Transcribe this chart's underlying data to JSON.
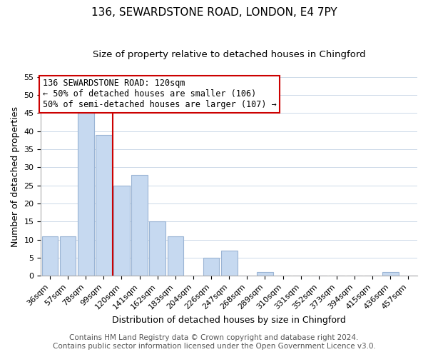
{
  "title": "136, SEWARDSTONE ROAD, LONDON, E4 7PY",
  "subtitle": "Size of property relative to detached houses in Chingford",
  "xlabel": "Distribution of detached houses by size in Chingford",
  "ylabel": "Number of detached properties",
  "categories": [
    "36sqm",
    "57sqm",
    "78sqm",
    "99sqm",
    "120sqm",
    "141sqm",
    "162sqm",
    "183sqm",
    "204sqm",
    "226sqm",
    "247sqm",
    "268sqm",
    "289sqm",
    "310sqm",
    "331sqm",
    "352sqm",
    "373sqm",
    "394sqm",
    "415sqm",
    "436sqm",
    "457sqm"
  ],
  "values": [
    11,
    11,
    45,
    39,
    25,
    28,
    15,
    11,
    0,
    5,
    7,
    0,
    1,
    0,
    0,
    0,
    0,
    0,
    0,
    1,
    0
  ],
  "bar_color": "#c6d9f0",
  "bar_edge_color": "#9ab4d4",
  "vline_x": 3.5,
  "vline_color": "#cc0000",
  "ylim": [
    0,
    55
  ],
  "yticks": [
    0,
    5,
    10,
    15,
    20,
    25,
    30,
    35,
    40,
    45,
    50,
    55
  ],
  "annotation_title": "136 SEWARDSTONE ROAD: 120sqm",
  "annotation_line1": "← 50% of detached houses are smaller (106)",
  "annotation_line2": "50% of semi-detached houses are larger (107) →",
  "annotation_box_color": "#ffffff",
  "annotation_box_edge": "#cc0000",
  "footer1": "Contains HM Land Registry data © Crown copyright and database right 2024.",
  "footer2": "Contains public sector information licensed under the Open Government Licence v3.0.",
  "background_color": "#ffffff",
  "grid_color": "#ccd9e8",
  "title_fontsize": 11,
  "subtitle_fontsize": 9.5,
  "xlabel_fontsize": 9,
  "ylabel_fontsize": 9,
  "tick_fontsize": 8,
  "annotation_fontsize": 8.5,
  "footer_fontsize": 7.5
}
